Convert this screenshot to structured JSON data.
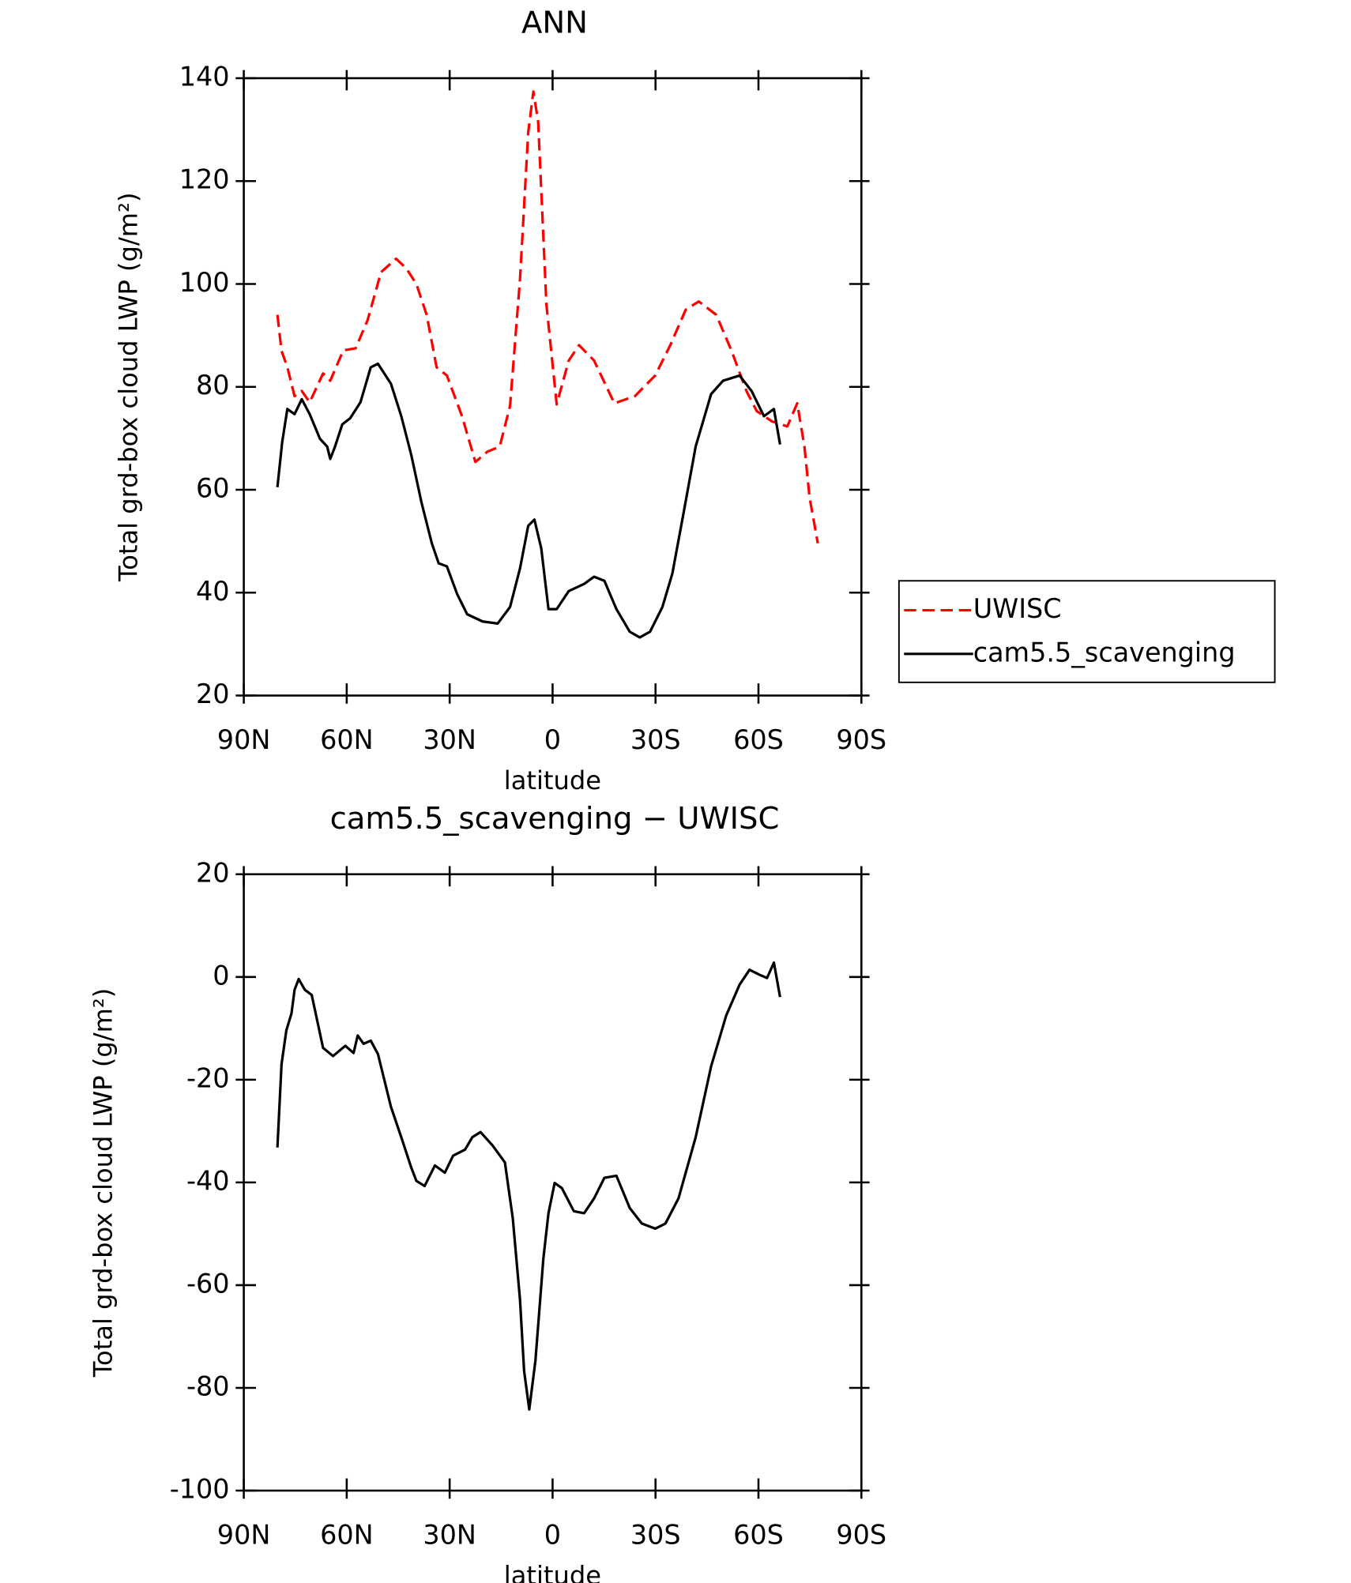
{
  "chart_data": [
    {
      "type": "line",
      "title": "ANN",
      "xlabel": "latitude",
      "ylabel": "Total grd-box cloud LWP (g/m²)",
      "xlim": [
        90,
        -90
      ],
      "xticks": [
        {
          "value": 90,
          "label": "90N"
        },
        {
          "value": 60,
          "label": "60N"
        },
        {
          "value": 30,
          "label": "30N"
        },
        0,
        {
          "value": -30,
          "label": "30S"
        },
        {
          "value": -60,
          "label": "60S"
        },
        {
          "value": -90,
          "label": "90S"
        }
      ],
      "ylim": [
        20,
        140
      ],
      "yticks": [
        20,
        40,
        60,
        80,
        100,
        120,
        140
      ],
      "series": [
        {
          "name": "UWISC",
          "color": "#ff0000",
          "dash": true,
          "x": [
            80.2,
            79,
            77.3,
            75.2,
            73.1,
            70.8,
            66.9,
            64.8,
            61,
            57.4,
            53.9,
            50,
            45.6,
            42.6,
            39.7,
            36.7,
            33.8,
            30.8,
            26.4,
            22.5,
            19,
            15.4,
            12.4,
            9.5,
            7.1,
            5.6,
            4.2,
            1.8,
            -1.2,
            -4.7,
            -7.7,
            -12.1,
            -18,
            -24,
            -29.9,
            -34.3,
            -38.8,
            -42.6,
            -47.7,
            -52.1,
            -56.5,
            -59.5,
            -63.9,
            -68.4,
            -71.3,
            -73.4,
            -74.9,
            -77.3
          ],
          "values": [
            94,
            87,
            83.8,
            78.2,
            79.2,
            77,
            82.6,
            81.2,
            87.1,
            87.5,
            93,
            102.3,
            104.9,
            103,
            100,
            94,
            83.8,
            82.2,
            74.3,
            65.4,
            67.4,
            68.4,
            76.3,
            100.9,
            129.5,
            137.4,
            131.5,
            96,
            76.6,
            85.1,
            88.1,
            85.1,
            76.8,
            78.2,
            82.2,
            88.1,
            95,
            96.6,
            94,
            87.1,
            79.2,
            75.3,
            73.3,
            72.3,
            76.8,
            68.4,
            58.5,
            49.6
          ]
        },
        {
          "name": "cam5.5_scavenging",
          "color": "#000000",
          "dash": false,
          "x": [
            80.2,
            78.8,
            77.3,
            75.2,
            73.1,
            70.8,
            67.8,
            65.7,
            64.8,
            63.4,
            61.3,
            59,
            56,
            53,
            50.9,
            47.1,
            44.1,
            41.2,
            38.2,
            35.2,
            33.2,
            30.8,
            27.8,
            24.9,
            20.4,
            16,
            12.4,
            9.5,
            7.1,
            5.3,
            3.3,
            1.2,
            -1.2,
            -4.7,
            -9.2,
            -12.1,
            -15.1,
            -18.6,
            -22.5,
            -25.4,
            -28.4,
            -32,
            -34.9,
            -37.9,
            -41.7,
            -46.2,
            -49.7,
            -54.5,
            -58,
            -61.6,
            -64.5,
            -66.3
          ],
          "values": [
            60.5,
            69.3,
            75.7,
            74.7,
            77.6,
            74.7,
            69.9,
            68.4,
            66,
            68.4,
            72.7,
            73.9,
            77,
            83.8,
            84.5,
            80.6,
            74.3,
            66.8,
            57.5,
            49.6,
            45.7,
            45.1,
            39.7,
            35.8,
            34.4,
            34,
            37.2,
            44.7,
            53,
            54.2,
            48.6,
            36.8,
            36.8,
            40.3,
            41.7,
            43.1,
            42.3,
            36.8,
            32.4,
            31.3,
            32.4,
            37.2,
            43.7,
            54.5,
            68.4,
            78.6,
            81.2,
            82.2,
            79.2,
            74.3,
            75.7,
            68.8
          ]
        }
      ]
    },
    {
      "type": "line",
      "title": "cam5.5_scavenging − UWISC",
      "xlabel": "latitude",
      "ylabel": "Total grd-box cloud LWP (g/m²)",
      "xlim": [
        90,
        -90
      ],
      "xticks": [
        {
          "value": 90,
          "label": "90N"
        },
        {
          "value": 60,
          "label": "60N"
        },
        {
          "value": 30,
          "label": "30N"
        },
        0,
        {
          "value": -30,
          "label": "30S"
        },
        {
          "value": -60,
          "label": "60S"
        },
        {
          "value": -90,
          "label": "90S"
        }
      ],
      "ylim": [
        -100,
        20
      ],
      "yticks": [
        -100,
        -80,
        -60,
        -40,
        -20,
        0,
        20
      ],
      "color": "#000000",
      "x": [
        80.2,
        79,
        77.6,
        76.1,
        75.2,
        74,
        72.2,
        70.2,
        66.9,
        64,
        60.4,
        58,
        56.8,
        55.1,
        53,
        50.9,
        47.1,
        44.1,
        41.2,
        39.7,
        37.3,
        34.3,
        31.4,
        29,
        25.5,
        23.4,
        21,
        17.5,
        13.9,
        11.6,
        9.5,
        8.3,
        6.8,
        5,
        2.7,
        1.2,
        -0.6,
        -2.7,
        -6.2,
        -9.2,
        -12.1,
        -15.1,
        -18.6,
        -22.5,
        -26,
        -29.9,
        -32.9,
        -36.7,
        -41.7,
        -46.2,
        -50.6,
        -54.5,
        -57.4,
        -60.4,
        -62.5,
        -64.5,
        -66.3
      ],
      "values": [
        -33.2,
        -17,
        -10.4,
        -7.1,
        -2.5,
        -0.4,
        -2.5,
        -3.5,
        -13.8,
        -15.4,
        -13.4,
        -14.8,
        -11.4,
        -13,
        -12.4,
        -15,
        -25.3,
        -31.2,
        -37.1,
        -39.7,
        -40.7,
        -36.7,
        -38.1,
        -34.8,
        -33.6,
        -31.2,
        -30.2,
        -32.8,
        -36.1,
        -47,
        -62.8,
        -76.7,
        -84.2,
        -74.7,
        -54.9,
        -46,
        -40.1,
        -41.1,
        -45.6,
        -46,
        -43.1,
        -39.1,
        -38.7,
        -45,
        -48,
        -49,
        -48,
        -43.1,
        -31.2,
        -17.4,
        -7.5,
        -1.5,
        1.4,
        0.4,
        -0.2,
        2.8,
        -3.9
      ]
    }
  ]
}
